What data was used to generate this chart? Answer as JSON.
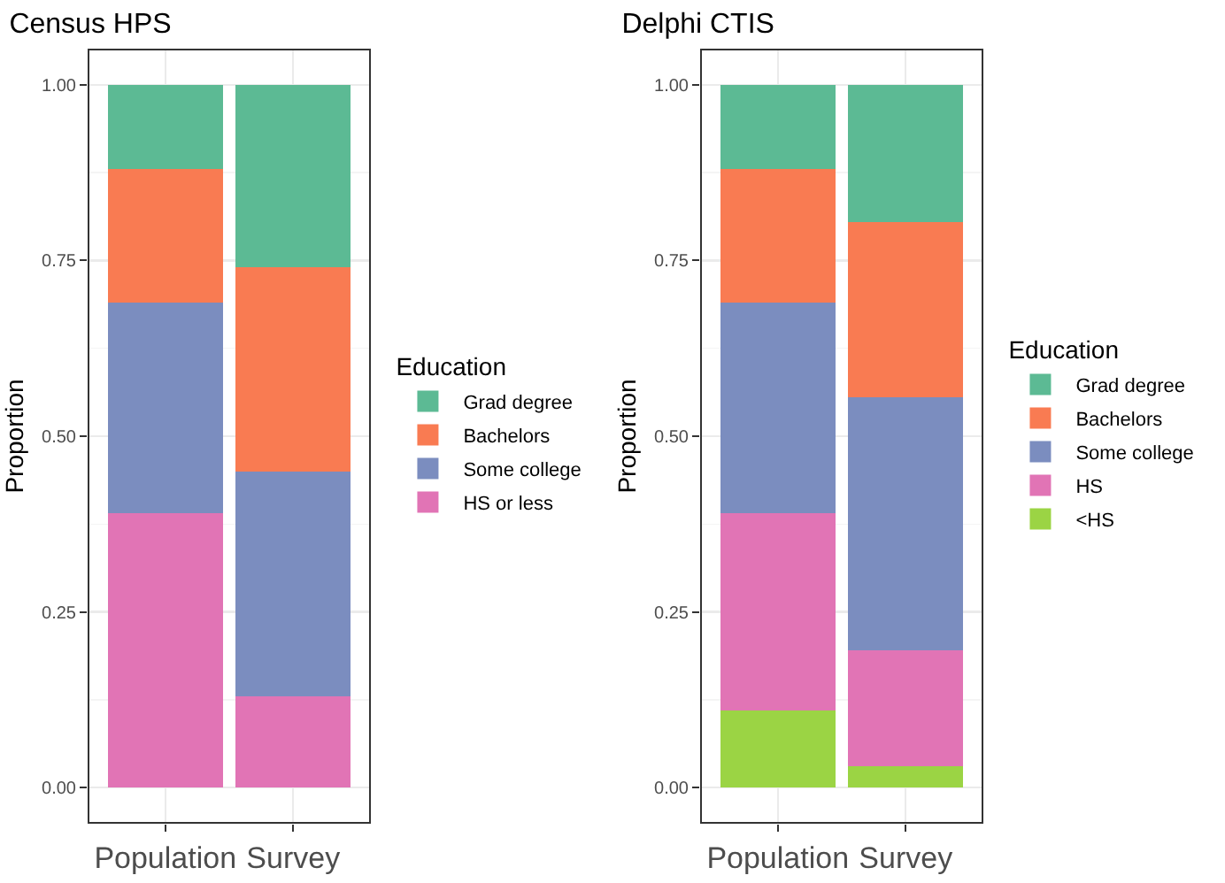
{
  "chart_data": [
    {
      "type": "bar",
      "stacked": true,
      "title": "Census HPS",
      "ylabel": "Proportion",
      "legend_title": "Education",
      "legend": "right",
      "grid": true,
      "categories": [
        "Population",
        "Survey"
      ],
      "ylim": [
        -0.05,
        1.05
      ],
      "yticks": [
        {
          "value": 0,
          "label": "0.00"
        },
        {
          "value": 0.25,
          "label": "0.25"
        },
        {
          "value": 0.5,
          "label": "0.50"
        },
        {
          "value": 0.75,
          "label": "0.75"
        },
        {
          "value": 1,
          "label": "1.00"
        }
      ],
      "series": [
        {
          "name": "HS or less",
          "color": "#e174b5",
          "values": [
            0.39,
            0.13
          ]
        },
        {
          "name": "Some college",
          "color": "#7b8dbf",
          "values": [
            0.3,
            0.32
          ]
        },
        {
          "name": "Bachelors",
          "color": "#f97b52",
          "values": [
            0.19,
            0.29
          ]
        },
        {
          "name": "Grad degree",
          "color": "#5cba94",
          "values": [
            0.12,
            0.26
          ]
        }
      ]
    },
    {
      "type": "bar",
      "stacked": true,
      "title": "Delphi CTIS",
      "ylabel": "Proportion",
      "legend_title": "Education",
      "legend": "right",
      "grid": true,
      "categories": [
        "Population",
        "Survey"
      ],
      "ylim": [
        -0.05,
        1.05
      ],
      "yticks": [
        {
          "value": 0,
          "label": "0.00"
        },
        {
          "value": 0.25,
          "label": "0.25"
        },
        {
          "value": 0.5,
          "label": "0.50"
        },
        {
          "value": 0.75,
          "label": "0.75"
        },
        {
          "value": 1,
          "label": "1.00"
        }
      ],
      "series": [
        {
          "name": "<HS",
          "color": "#9bd444",
          "values": [
            0.11,
            0.03
          ]
        },
        {
          "name": "HS",
          "color": "#e174b5",
          "values": [
            0.28,
            0.165
          ]
        },
        {
          "name": "Some college",
          "color": "#7b8dbf",
          "values": [
            0.3,
            0.36
          ]
        },
        {
          "name": "Bachelors",
          "color": "#f97b52",
          "values": [
            0.19,
            0.25
          ]
        },
        {
          "name": "Grad degree",
          "color": "#5cba94",
          "values": [
            0.12,
            0.195
          ]
        }
      ]
    }
  ]
}
